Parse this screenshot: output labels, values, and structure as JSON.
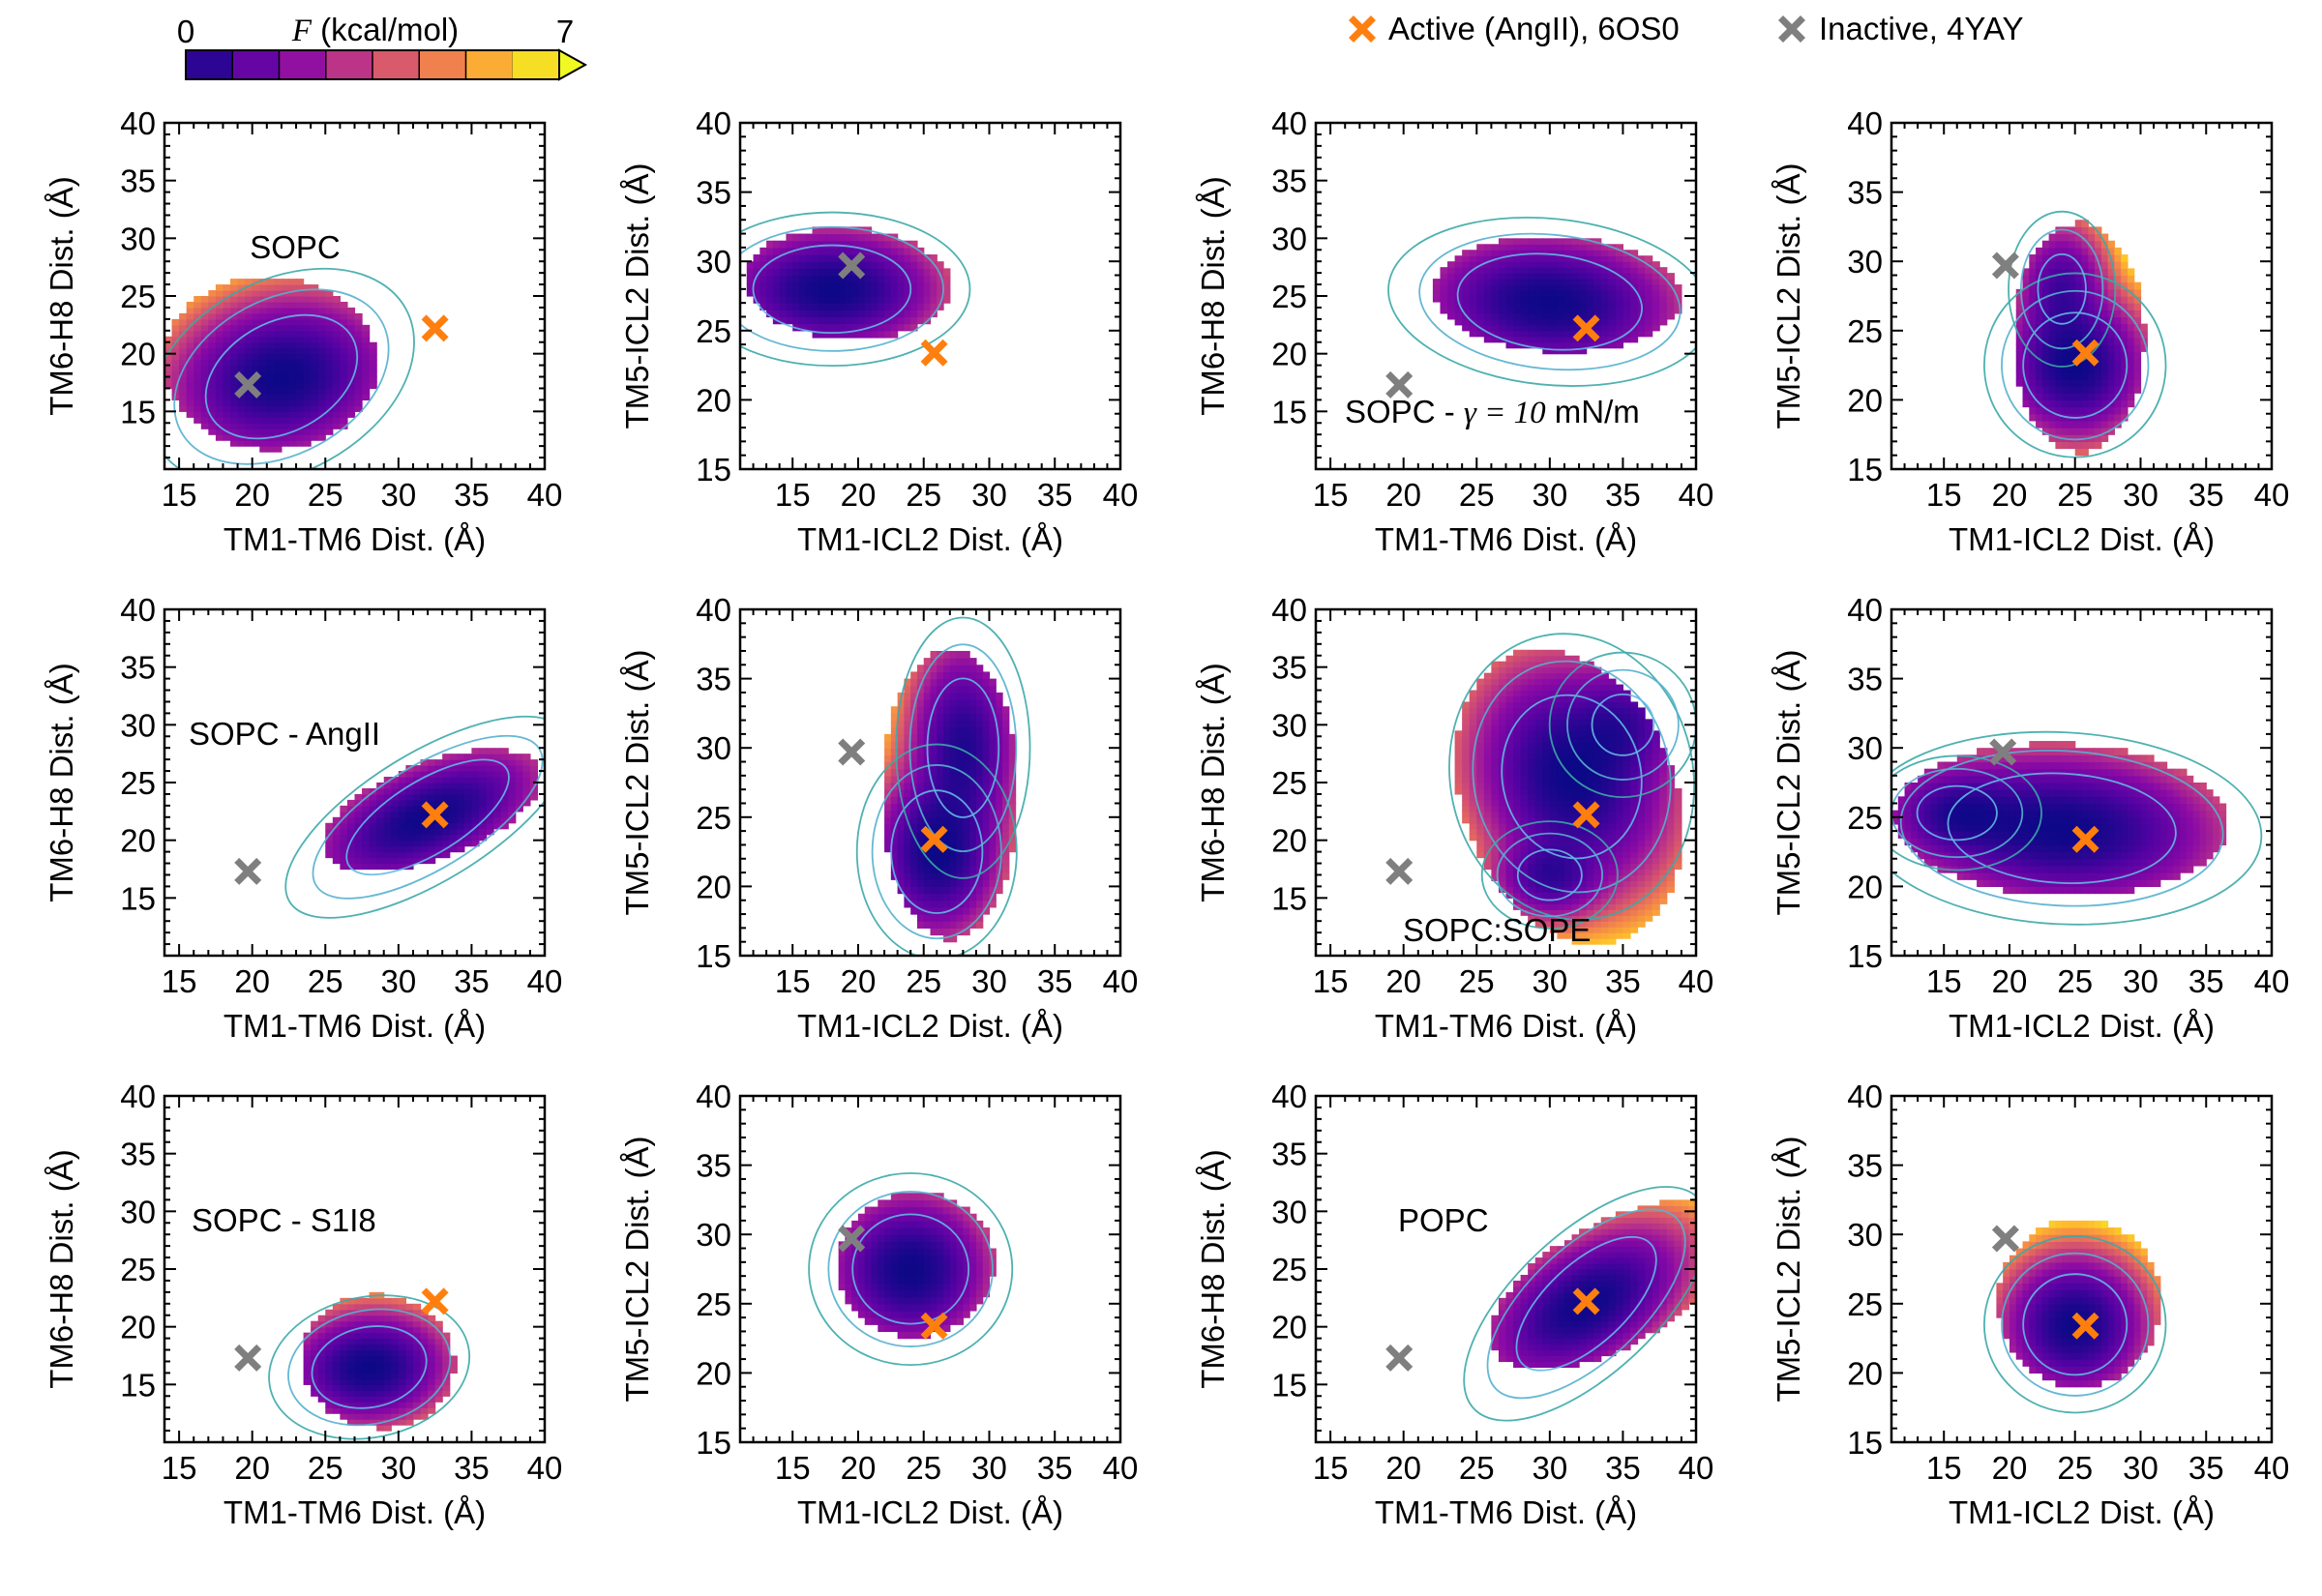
{
  "colorbar": {
    "min_label": "0",
    "max_label": "7",
    "variable": "F",
    "unit": "(kcal/mol)",
    "range": [
      0,
      7
    ],
    "colormap": "plasma",
    "levels": 8
  },
  "legend": {
    "placement": "top-right",
    "items": [
      {
        "label": "Active (AngII), 6OS0",
        "color": "#ff7f0e",
        "marker": "x-marker-icon"
      },
      {
        "label": "Inactive, 4YAY",
        "color": "#7f7f7f",
        "marker": "x-marker-icon"
      }
    ]
  },
  "common": {
    "tm1_tm6_ylabel": "TM6-H8 Dist. (Å)",
    "tm1_tm6_xlabel": "TM1-TM6 Dist. (Å)",
    "icl2_ylabel": "TM5-ICL2 Dist. (Å)",
    "icl2_xlabel": "TM1-ICL2 Dist. (Å)"
  },
  "chart_data": [
    {
      "type": "heatmap",
      "row": 1,
      "col": 1,
      "annotation": "SOPC",
      "xlabel": "TM1-TM6 Dist. (Å)",
      "ylabel": "TM6-H8 Dist. (Å)",
      "xlim": [
        14,
        40
      ],
      "ylim": [
        10,
        40
      ],
      "xticks": [
        15,
        20,
        25,
        30,
        35,
        40
      ],
      "yticks": [
        15,
        20,
        25,
        30,
        35,
        40
      ],
      "basins": [
        {
          "x": 22,
          "y": 18,
          "sx": 3.5,
          "sy": 3,
          "w": 1.0,
          "rot": 0.5
        }
      ],
      "extent": {
        "cx": 21.2,
        "cy": 19.2,
        "rx": 7.3,
        "ry": 7.5,
        "rot": 0.25
      },
      "markers": {
        "active": [
          32.5,
          22.2
        ],
        "inactive": [
          19.7,
          17.3
        ]
      }
    },
    {
      "type": "heatmap",
      "row": 1,
      "col": 2,
      "annotation": "",
      "xlabel": "TM1-ICL2 Dist. (Å)",
      "ylabel": "TM5-ICL2 Dist. (Å)",
      "xlim": [
        11,
        40
      ],
      "ylim": [
        15,
        40
      ],
      "xticks": [
        15,
        20,
        25,
        30,
        35,
        40
      ],
      "yticks": [
        15,
        20,
        25,
        30,
        35,
        40
      ],
      "basins": [
        {
          "x": 18,
          "y": 28,
          "sx": 3.8,
          "sy": 2,
          "w": 1.0,
          "rot": 0
        }
      ],
      "extent": {
        "cx": 19.2,
        "cy": 28.4,
        "rx": 7.9,
        "ry": 4.0,
        "rot": -0.05
      },
      "markers": {
        "active": [
          25.8,
          23.4
        ],
        "inactive": [
          19.5,
          29.7
        ]
      }
    },
    {
      "type": "heatmap",
      "row": 1,
      "col": 3,
      "annotation": "SOPC - γ = 10 mN/m",
      "annotation_pre": "SOPC - ",
      "annotation_math": "γ = 10",
      "annotation_post": " mN/m",
      "xlabel": "TM1-TM6 Dist. (Å)",
      "ylabel": "TM6-H8 Dist. (Å)",
      "xlim": [
        14,
        40
      ],
      "ylim": [
        10,
        40
      ],
      "xticks": [
        15,
        20,
        25,
        30,
        35,
        40
      ],
      "yticks": [
        15,
        20,
        25,
        30,
        35,
        40
      ],
      "basins": [
        {
          "x": 30,
          "y": 24.5,
          "sx": 4,
          "sy": 2.6,
          "w": 1.0,
          "rot": -0.1
        }
      ],
      "extent": {
        "cx": 30.5,
        "cy": 25.2,
        "rx": 8.5,
        "ry": 5.0,
        "rot": -0.05
      },
      "markers": {
        "active": [
          32.5,
          22.2
        ],
        "inactive": [
          19.7,
          17.3
        ]
      }
    },
    {
      "type": "heatmap",
      "row": 1,
      "col": 4,
      "annotation": "",
      "xlabel": "TM1-ICL2 Dist. (Å)",
      "ylabel": "TM5-ICL2 Dist. (Å)",
      "xlim": [
        11,
        40
      ],
      "ylim": [
        15,
        40
      ],
      "xticks": [
        15,
        20,
        25,
        30,
        35,
        40
      ],
      "yticks": [
        15,
        20,
        25,
        30,
        35,
        40
      ],
      "basins": [
        {
          "x": 25,
          "y": 22.5,
          "sx": 2.5,
          "sy": 2.4,
          "w": 1.0,
          "rot": 0
        },
        {
          "x": 24,
          "y": 28,
          "sx": 1.6,
          "sy": 2.2,
          "w": 0.55,
          "rot": 0
        }
      ],
      "extent": {
        "cx": 25.3,
        "cy": 24.5,
        "rx": 5.0,
        "ry": 8.3,
        "rot": 0.0
      },
      "markers": {
        "active": [
          25.8,
          23.4
        ],
        "inactive": [
          19.7,
          29.7
        ]
      }
    },
    {
      "type": "heatmap",
      "row": 2,
      "col": 1,
      "annotation": "SOPC - AngII",
      "xlabel": "TM1-TM6 Dist. (Å)",
      "ylabel": "TM6-H8 Dist. (Å)",
      "xlim": [
        14,
        40
      ],
      "ylim": [
        10,
        40
      ],
      "xticks": [
        15,
        20,
        25,
        30,
        35,
        40
      ],
      "yticks": [
        15,
        20,
        25,
        30,
        35,
        40
      ],
      "basins": [
        {
          "x": 32,
          "y": 22,
          "sx": 4,
          "sy": 2,
          "w": 1.0,
          "rot": 0.55
        }
      ],
      "extent": {
        "cx": 32.3,
        "cy": 22.6,
        "rx": 8.2,
        "ry": 4.0,
        "rot": 0.5
      },
      "markers": {
        "active": [
          32.5,
          22.2
        ],
        "inactive": [
          19.7,
          17.3
        ]
      }
    },
    {
      "type": "heatmap",
      "row": 2,
      "col": 2,
      "annotation": "",
      "xlabel": "TM1-ICL2 Dist. (Å)",
      "ylabel": "TM5-ICL2 Dist. (Å)",
      "xlim": [
        11,
        40
      ],
      "ylim": [
        15,
        40
      ],
      "xticks": [
        15,
        20,
        25,
        30,
        35,
        40
      ],
      "yticks": [
        15,
        20,
        25,
        30,
        35,
        40
      ],
      "basins": [
        {
          "x": 26,
          "y": 22.5,
          "sx": 2.2,
          "sy": 2.8,
          "w": 1.0,
          "rot": 0
        },
        {
          "x": 28,
          "y": 30,
          "sx": 1.9,
          "sy": 3.5,
          "w": 0.8,
          "rot": 0
        }
      ],
      "extent": {
        "cx": 27.0,
        "cy": 26.7,
        "rx": 5.2,
        "ry": 10.5,
        "rot": 0.0
      },
      "markers": {
        "active": [
          25.8,
          23.4
        ],
        "inactive": [
          19.5,
          29.7
        ]
      }
    },
    {
      "type": "heatmap",
      "row": 2,
      "col": 3,
      "annotation": "SOPC:SOPE",
      "xlabel": "TM1-TM6 Dist. (Å)",
      "ylabel": "TM6-H8 Dist. (Å)",
      "xlim": [
        14,
        40
      ],
      "ylim": [
        10,
        40
      ],
      "xticks": [
        15,
        20,
        25,
        30,
        35,
        40
      ],
      "yticks": [
        15,
        20,
        25,
        30,
        35,
        40
      ],
      "basins": [
        {
          "x": 31.5,
          "y": 25.5,
          "sx": 3,
          "sy": 4.5,
          "w": 1.0,
          "rot": 0.2
        },
        {
          "x": 30,
          "y": 17,
          "sx": 1.8,
          "sy": 1.8,
          "w": 0.6,
          "rot": 0
        },
        {
          "x": 35,
          "y": 30,
          "sx": 2,
          "sy": 2.5,
          "w": 0.5,
          "rot": 0
        }
      ],
      "extent": {
        "cx": 31.3,
        "cy": 23.8,
        "rx": 7.4,
        "ry": 13.0,
        "rot": 0.22
      },
      "markers": {
        "active": [
          32.5,
          22.2
        ],
        "inactive": [
          19.7,
          17.3
        ]
      }
    },
    {
      "type": "heatmap",
      "row": 2,
      "col": 4,
      "annotation": "",
      "xlabel": "TM1-ICL2 Dist. (Å)",
      "ylabel": "TM5-ICL2 Dist. (Å)",
      "xlim": [
        11,
        40
      ],
      "ylim": [
        15,
        40
      ],
      "xticks": [
        15,
        20,
        25,
        30,
        35,
        40
      ],
      "yticks": [
        15,
        20,
        25,
        30,
        35,
        40
      ],
      "basins": [
        {
          "x": 24,
          "y": 24.2,
          "sx": 5.5,
          "sy": 2.5,
          "w": 1.0,
          "rot": -0.05
        },
        {
          "x": 16,
          "y": 25.3,
          "sx": 2.5,
          "sy": 1.6,
          "w": 0.6,
          "rot": 0
        }
      ],
      "extent": {
        "cx": 23.9,
        "cy": 24.8,
        "rx": 12.7,
        "ry": 5.5,
        "rot": -0.03
      },
      "markers": {
        "active": [
          25.8,
          23.4
        ],
        "inactive": [
          19.5,
          29.7
        ]
      }
    },
    {
      "type": "heatmap",
      "row": 3,
      "col": 1,
      "annotation": "SOPC - S1I8",
      "xlabel": "TM1-TM6 Dist. (Å)",
      "ylabel": "TM6-H8 Dist. (Å)",
      "xlim": [
        14,
        40
      ],
      "ylim": [
        10,
        40
      ],
      "xticks": [
        15,
        20,
        25,
        30,
        35,
        40
      ],
      "yticks": [
        15,
        20,
        25,
        30,
        35,
        40
      ],
      "basins": [
        {
          "x": 28,
          "y": 16.5,
          "sx": 2.5,
          "sy": 2.2,
          "w": 1.0,
          "rot": 0.2
        }
      ],
      "extent": {
        "cx": 28.6,
        "cy": 17.0,
        "rx": 5.2,
        "ry": 5.8,
        "rot": 0.2
      },
      "markers": {
        "active": [
          32.5,
          22.2
        ],
        "inactive": [
          19.7,
          17.3
        ]
      }
    },
    {
      "type": "heatmap",
      "row": 3,
      "col": 2,
      "annotation": "",
      "xlabel": "TM1-ICL2 Dist. (Å)",
      "ylabel": "TM5-ICL2 Dist. (Å)",
      "xlim": [
        11,
        40
      ],
      "ylim": [
        15,
        40
      ],
      "xticks": [
        15,
        20,
        25,
        30,
        35,
        40
      ],
      "yticks": [
        15,
        20,
        25,
        30,
        35,
        40
      ],
      "basins": [
        {
          "x": 24,
          "y": 27.5,
          "sx": 2.8,
          "sy": 2.5,
          "w": 1.0,
          "rot": 0
        }
      ],
      "extent": {
        "cx": 24.4,
        "cy": 27.8,
        "rx": 6.0,
        "ry": 5.2,
        "rot": 0.1
      },
      "markers": {
        "active": [
          25.8,
          23.4
        ],
        "inactive": [
          19.5,
          29.7
        ]
      }
    },
    {
      "type": "heatmap",
      "row": 3,
      "col": 3,
      "annotation": "POPC",
      "xlabel": "TM1-TM6 Dist. (Å)",
      "ylabel": "TM6-H8 Dist. (Å)",
      "xlim": [
        14,
        40
      ],
      "ylim": [
        10,
        40
      ],
      "xticks": [
        15,
        20,
        25,
        30,
        35,
        40
      ],
      "yticks": [
        15,
        20,
        25,
        30,
        35,
        40
      ],
      "basins": [
        {
          "x": 32.5,
          "y": 22,
          "sx": 3.8,
          "sy": 2.2,
          "w": 1.0,
          "rot": 0.75
        }
      ],
      "extent": {
        "cx": 34.2,
        "cy": 23.6,
        "rx": 9.8,
        "ry": 5.0,
        "rot": 0.68
      },
      "markers": {
        "active": [
          32.5,
          22.2
        ],
        "inactive": [
          19.7,
          17.3
        ]
      }
    },
    {
      "type": "heatmap",
      "row": 3,
      "col": 4,
      "annotation": "",
      "xlabel": "TM1-ICL2 Dist. (Å)",
      "ylabel": "TM5-ICL2 Dist. (Å)",
      "xlim": [
        11,
        40
      ],
      "ylim": [
        15,
        40
      ],
      "xticks": [
        15,
        20,
        25,
        30,
        35,
        40
      ],
      "yticks": [
        15,
        20,
        25,
        30,
        35,
        40
      ],
      "basins": [
        {
          "x": 25,
          "y": 23.5,
          "sx": 2.5,
          "sy": 2.3,
          "w": 1.0,
          "rot": 0
        }
      ],
      "extent": {
        "cx": 25.3,
        "cy": 25.1,
        "rx": 6.2,
        "ry": 6.1,
        "rot": 0.05
      },
      "markers": {
        "active": [
          25.8,
          23.4
        ],
        "inactive": [
          19.7,
          29.7
        ]
      }
    }
  ]
}
